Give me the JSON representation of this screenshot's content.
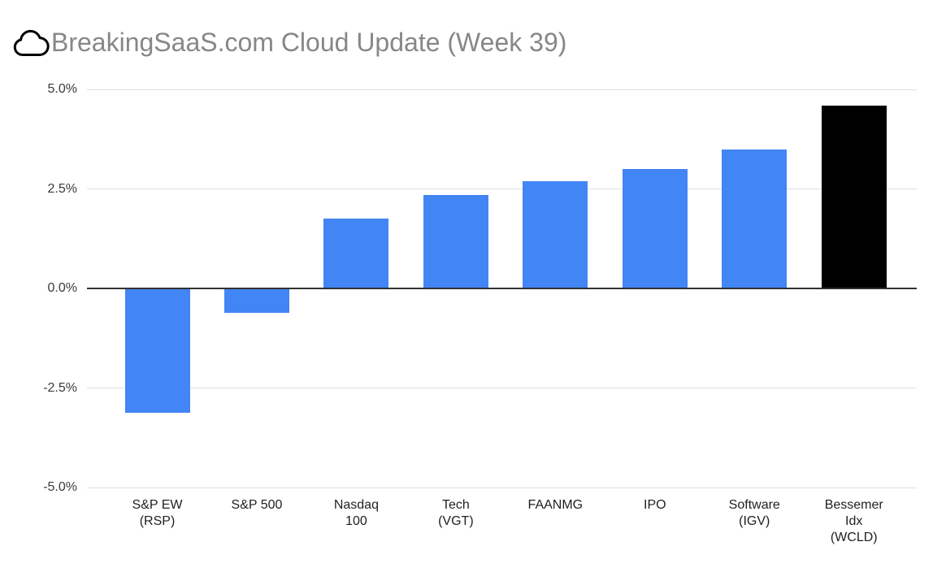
{
  "header": {
    "title": "BreakingSaaS.com Cloud Update (Week 39)",
    "icon": "cloud-outline-icon"
  },
  "chart_data": {
    "type": "bar",
    "title": "BreakingSaaS.com Cloud Update (Week 39)",
    "categories": [
      "S&P EW (RSP)",
      "S&P 500",
      "Nasdaq 100",
      "Tech (VGT)",
      "FAANMG",
      "IPO",
      "Software (IGV)",
      "Bessemer Idx (WCLD)"
    ],
    "category_lines": [
      [
        "S&P EW",
        "(RSP)"
      ],
      [
        "S&P 500"
      ],
      [
        "Nasdaq",
        "100"
      ],
      [
        "Tech",
        "(VGT)"
      ],
      [
        "FAANMG"
      ],
      [
        "IPO"
      ],
      [
        "Software",
        "(IGV)"
      ],
      [
        "Bessemer",
        "Idx",
        "(WCLD)"
      ]
    ],
    "values": [
      -3.1,
      -0.6,
      1.75,
      2.35,
      2.7,
      3.0,
      3.5,
      4.6
    ],
    "unit": "%",
    "bar_colors": [
      "#4285f4",
      "#4285f4",
      "#4285f4",
      "#4285f4",
      "#4285f4",
      "#4285f4",
      "#4285f4",
      "#000000"
    ],
    "xlabel": "",
    "ylabel": "",
    "ylim": [
      -5.0,
      5.0
    ],
    "yticks": [
      {
        "label": "5.0%",
        "value": 5.0
      },
      {
        "label": "2.5%",
        "value": 2.5
      },
      {
        "label": "0.0%",
        "value": 0.0
      },
      {
        "label": "-2.5%",
        "value": -2.5
      },
      {
        "label": "-5.0%",
        "value": -5.0
      }
    ],
    "grid": true,
    "legend": "none",
    "colors": {
      "bar_default": "#4285f4",
      "bar_highlight": "#000000",
      "gridline": "#e0e0e0",
      "zero_axis": "#323232",
      "tick_text": "#3a3a3a",
      "title_text": "#878787"
    }
  }
}
